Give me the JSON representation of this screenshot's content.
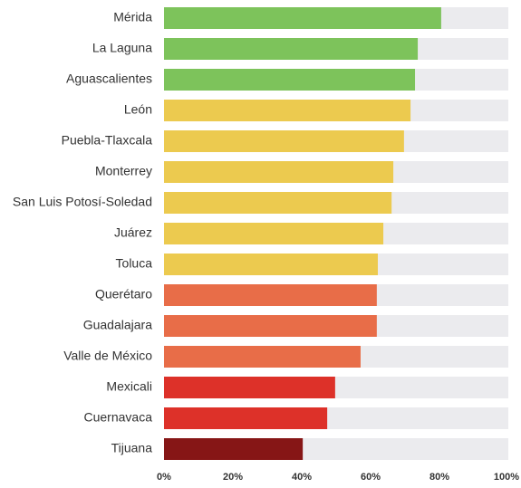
{
  "chart_data": {
    "type": "bar",
    "orientation": "horizontal",
    "categories": [
      "Mérida",
      "La Laguna",
      "Aguascalientes",
      "León",
      "Puebla-Tlaxcala",
      "Monterrey",
      "San Luis Potosí-Soledad",
      "Juárez",
      "Toluca",
      "Querétaro",
      "Guadalajara",
      "Valle de México",
      "Mexicali",
      "Cuernavaca",
      "Tijuana"
    ],
    "values": [
      80.5,
      73.7,
      72.9,
      71.6,
      69.7,
      66.6,
      66.1,
      63.7,
      62.1,
      61.8,
      61.8,
      57.1,
      49.7,
      47.4,
      40.3
    ],
    "colors": [
      "#7dc35b",
      "#7dc35b",
      "#7dc35b",
      "#ecca4f",
      "#ecca4f",
      "#ecca4f",
      "#ecca4f",
      "#ecca4f",
      "#ecca4f",
      "#e86d48",
      "#e86d48",
      "#e86d48",
      "#dd3129",
      "#dd3129",
      "#861616"
    ],
    "xlim": [
      0,
      100
    ],
    "xticks": [
      {
        "value": 0,
        "label": "0%"
      },
      {
        "value": 20,
        "label": "20%"
      },
      {
        "value": 40,
        "label": "40%"
      },
      {
        "value": 60,
        "label": "60%"
      },
      {
        "value": 80,
        "label": "80%"
      },
      {
        "value": 100,
        "label": "100%"
      }
    ]
  }
}
